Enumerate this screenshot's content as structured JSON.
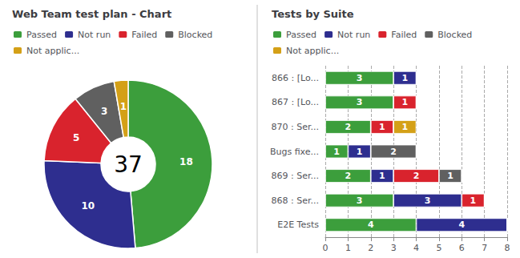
{
  "chart_data": [
    {
      "type": "pie",
      "title": "Web Team test plan - Chart",
      "categories": [
        "Passed",
        "Not run",
        "Failed",
        "Blocked",
        "Not applic..."
      ],
      "values": [
        18,
        10,
        5,
        3,
        1
      ],
      "colors": [
        "#3c9e3c",
        "#2e2e8f",
        "#d9232d",
        "#606060",
        "#d4a017"
      ],
      "data_labels": true,
      "legend": "top-left",
      "annotations": [
        "37"
      ]
    },
    {
      "type": "bar",
      "orientation": "horizontal",
      "stacked": true,
      "title": "Tests by Suite",
      "categories": [
        "E2E Tests",
        "868 : Ser...",
        "869 : Ser...",
        "Bugs fixe...",
        "870 : Ser...",
        "867 : [Lo...",
        "866 : [Lo..."
      ],
      "series": [
        {
          "name": "Passed",
          "color": "#3c9e3c",
          "values": [
            4,
            3,
            2,
            1,
            2,
            3,
            3
          ]
        },
        {
          "name": "Not run",
          "color": "#2e2e8f",
          "values": [
            4,
            3,
            1,
            1,
            0,
            0,
            1
          ]
        },
        {
          "name": "Failed",
          "color": "#d9232d",
          "values": [
            0,
            1,
            2,
            0,
            1,
            1,
            0
          ]
        },
        {
          "name": "Blocked",
          "color": "#606060",
          "values": [
            0,
            0,
            1,
            2,
            0,
            0,
            0
          ]
        },
        {
          "name": "Not applic...",
          "color": "#d4a017",
          "values": [
            0,
            0,
            0,
            0,
            1,
            0,
            0
          ]
        }
      ],
      "xlim": [
        0,
        8
      ],
      "xticks": [
        0,
        1,
        2,
        3,
        4,
        5,
        6,
        7,
        8
      ],
      "grid": true,
      "data_labels": true,
      "legend": "top-left"
    }
  ]
}
